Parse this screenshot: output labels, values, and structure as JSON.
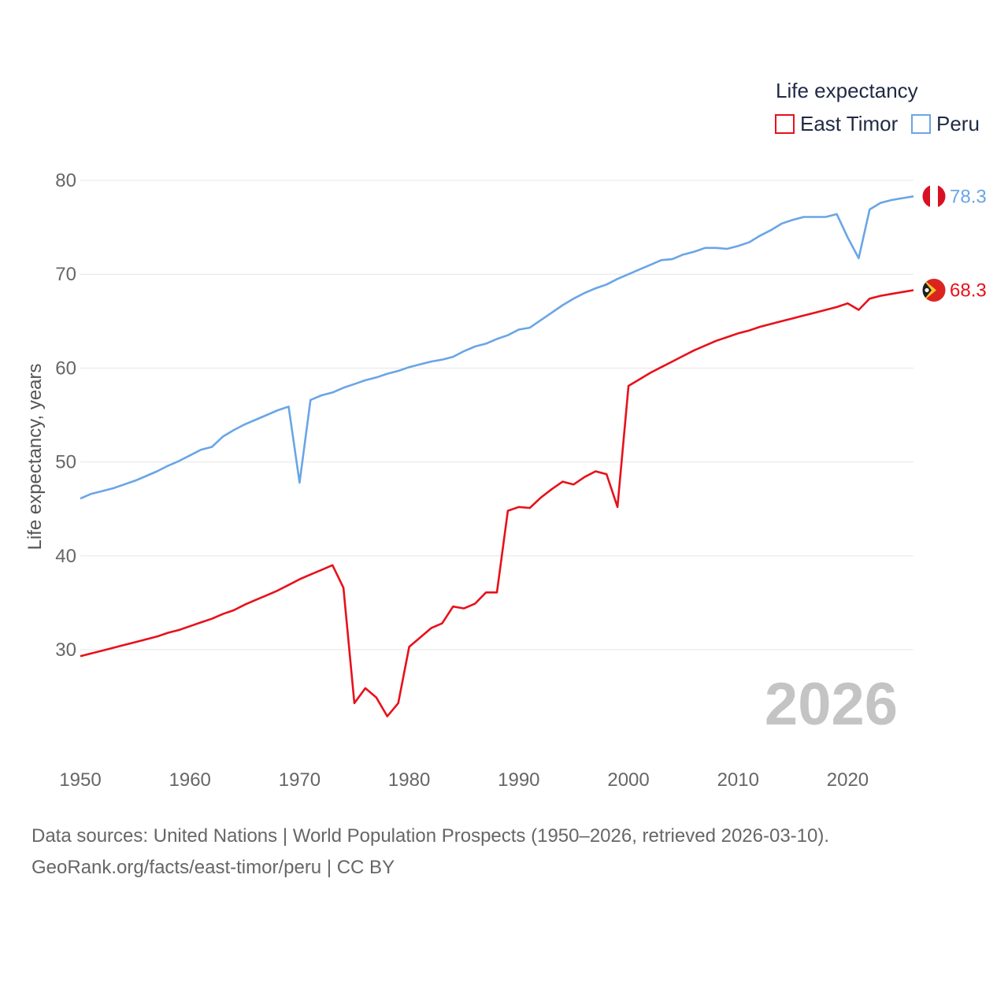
{
  "chart_data": {
    "type": "line",
    "legend_title": "Life expectancy",
    "ylabel": "Life expectancy, years",
    "xlabel": "",
    "xlim": [
      1950,
      2026
    ],
    "ylim": [
      20,
      82
    ],
    "x_ticks": [
      1950,
      1960,
      1970,
      1980,
      1990,
      2000,
      2010,
      2020
    ],
    "y_ticks": [
      30,
      40,
      50,
      60,
      70,
      80
    ],
    "year_watermark": "2026",
    "x": [
      1950,
      1951,
      1952,
      1953,
      1954,
      1955,
      1956,
      1957,
      1958,
      1959,
      1960,
      1961,
      1962,
      1963,
      1964,
      1965,
      1966,
      1967,
      1968,
      1969,
      1970,
      1971,
      1972,
      1973,
      1974,
      1975,
      1976,
      1977,
      1978,
      1979,
      1980,
      1981,
      1982,
      1983,
      1984,
      1985,
      1986,
      1987,
      1988,
      1989,
      1990,
      1991,
      1992,
      1993,
      1994,
      1995,
      1996,
      1997,
      1998,
      1999,
      2000,
      2001,
      2002,
      2003,
      2004,
      2005,
      2006,
      2007,
      2008,
      2009,
      2010,
      2011,
      2012,
      2013,
      2014,
      2015,
      2016,
      2017,
      2018,
      2019,
      2020,
      2021,
      2022,
      2023,
      2024,
      2025,
      2026
    ],
    "series": [
      {
        "name": "East Timor",
        "color": "#e8101a",
        "end_label": "68.3",
        "flag": "east-timor-flag",
        "values": [
          29.3,
          29.6,
          29.9,
          30.2,
          30.5,
          30.8,
          31.1,
          31.4,
          31.8,
          32.1,
          32.5,
          32.9,
          33.3,
          33.8,
          34.2,
          34.8,
          35.3,
          35.8,
          36.3,
          36.9,
          37.5,
          38.0,
          38.5,
          39.0,
          36.6,
          24.3,
          25.9,
          24.9,
          22.9,
          24.3,
          30.3,
          31.3,
          32.3,
          32.8,
          34.6,
          34.4,
          34.9,
          36.1,
          36.1,
          44.8,
          45.2,
          45.1,
          46.2,
          47.1,
          47.9,
          47.6,
          48.4,
          49.0,
          48.7,
          45.2,
          58.1,
          58.8,
          59.5,
          60.1,
          60.7,
          61.3,
          61.9,
          62.4,
          62.9,
          63.3,
          63.7,
          64.0,
          64.4,
          64.7,
          65.0,
          65.3,
          65.6,
          65.9,
          66.2,
          66.5,
          66.9,
          66.2,
          67.4,
          67.7,
          67.9,
          68.1,
          68.3
        ]
      },
      {
        "name": "Peru",
        "color": "#6aa5e6",
        "end_label": "78.3",
        "flag": "peru-flag",
        "values": [
          46.1,
          46.6,
          46.9,
          47.2,
          47.6,
          48.0,
          48.5,
          49.0,
          49.6,
          50.1,
          50.7,
          51.3,
          51.6,
          52.7,
          53.4,
          54.0,
          54.5,
          55.0,
          55.5,
          55.9,
          47.8,
          56.6,
          57.1,
          57.4,
          57.9,
          58.3,
          58.7,
          59.0,
          59.4,
          59.7,
          60.1,
          60.4,
          60.7,
          60.9,
          61.2,
          61.8,
          62.3,
          62.6,
          63.1,
          63.5,
          64.1,
          64.3,
          65.1,
          65.9,
          66.7,
          67.4,
          68.0,
          68.5,
          68.9,
          69.5,
          70.0,
          70.5,
          71.0,
          71.5,
          71.6,
          72.1,
          72.4,
          72.8,
          72.8,
          72.7,
          73.0,
          73.4,
          74.1,
          74.7,
          75.4,
          75.8,
          76.1,
          76.1,
          76.1,
          76.4,
          73.9,
          71.7,
          76.9,
          77.6,
          77.9,
          78.1,
          78.3
        ]
      }
    ]
  },
  "footer": {
    "source_line": "Data sources: United Nations | World Population Prospects (1950–2026, retrieved 2026-03-10).",
    "credit_line": "GeoRank.org/facts/east-timor/peru | CC BY"
  }
}
